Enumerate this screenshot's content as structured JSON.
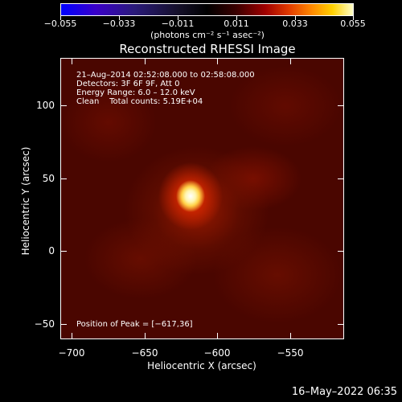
{
  "colorbar": {
    "ticks": [
      "−0.055",
      "−0.033",
      "−0.011",
      "0.011",
      "0.033",
      "0.055"
    ],
    "unit": "(photons cm⁻² s⁻¹ asec⁻²)"
  },
  "title": "Reconstructed RHESSI Image",
  "info": {
    "line1": "21–Aug–2014 02:52:08.000 to 02:58:08.000",
    "line2": "Detectors: 3F 6F 9F, Att 0",
    "line3": "Energy Range: 6.0 – 12.0 keV",
    "line4": "Clean    Total counts: 5.19E+04",
    "peak": "Position of Peak = [−617,36]"
  },
  "axes": {
    "x_title": "Heliocentric X (arcsec)",
    "y_title": "Heliocentric Y (arcsec)",
    "x_ticks": [
      "−700",
      "−650",
      "−600",
      "−550"
    ],
    "y_ticks": [
      "100",
      "50",
      "0",
      "−50"
    ]
  },
  "timestamp": "16–May–2022 06:35",
  "colors": {
    "background": "#000000",
    "text": "#ffffff"
  }
}
